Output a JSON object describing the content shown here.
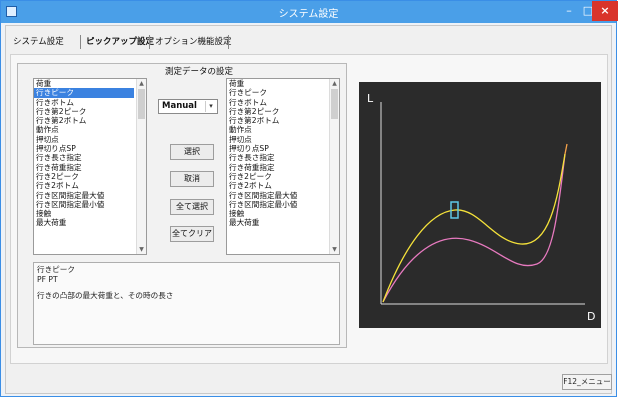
{
  "window": {
    "title": "システム設定",
    "minimize_glyph": "–",
    "maximize_glyph": "□",
    "close_glyph": "×"
  },
  "tabs": [
    {
      "label": "システム設定",
      "active": false
    },
    {
      "label": "ピックアップ設定",
      "active": true
    },
    {
      "label": "オプション機能設定",
      "active": false
    }
  ],
  "measurement": {
    "group_label": "測定データの設定",
    "left_list": [
      "荷重",
      "行きピーク",
      "行きボトム",
      "行き第2ピーク",
      "行き第2ボトム",
      "動作点",
      "押切点",
      "押切り点SP",
      "行き長さ指定",
      "行き荷重指定",
      "行き2ピーク",
      "行き2ボトム",
      "行き区間指定最大値",
      "行き区間指定最小値",
      "接触",
      "最大荷重"
    ],
    "left_selected_index": 1,
    "right_list": [
      "荷重",
      "行きピーク",
      "行きボトム",
      "行き第2ピーク",
      "行き第2ボトム",
      "動作点",
      "押切点",
      "押切り点SP",
      "行き長さ指定",
      "行き荷重指定",
      "行き2ピーク",
      "行き2ボトム",
      "行き区間指定最大値",
      "行き区間指定最小値",
      "接触",
      "最大荷重"
    ],
    "mode_select": {
      "value": "Manual",
      "caret": "▾"
    },
    "buttons": {
      "select": "選択",
      "cancel": "取消",
      "select_all": "全て選択",
      "clear_all": "全てクリア"
    },
    "scroll_up": "▲",
    "scroll_down": "▼"
  },
  "description": {
    "title": "行きピーク",
    "code": "PF PT",
    "text": "行きの凸部の最大荷重と、その時の長さ"
  },
  "chart": {
    "y_axis_label": "L",
    "x_axis_label": "D",
    "background": "#2b2b2b",
    "curve_colors": {
      "upper": "#f5e23a",
      "lower": "#e87ac0",
      "end": "#f5a24a",
      "marker": "#5ec8e8"
    }
  },
  "footer": {
    "menu_button": "F12_メニュー"
  }
}
